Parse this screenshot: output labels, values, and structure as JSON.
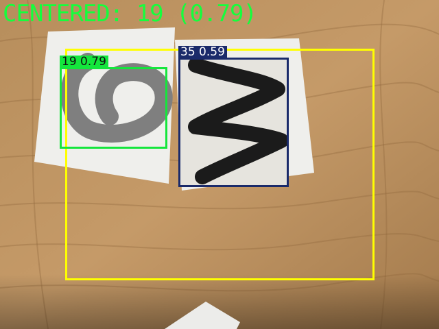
{
  "overlay": {
    "title": "CENTERED: 19 (0.79)"
  },
  "detections": [
    {
      "class_id": "19",
      "score": "0.79",
      "label": "19 0.79",
      "color": "#14e63c",
      "label_text_color": "#101010"
    },
    {
      "class_id": "35",
      "score": "0.59",
      "label": "35 0.59",
      "color": "#1a2a6a",
      "label_text_color": "#ffffff"
    }
  ],
  "center_region": {
    "color": "#ffff00"
  },
  "scene": {
    "background": "wooden-table",
    "cards": [
      {
        "glyph": "6",
        "ink_color": "#7a7a7a"
      },
      {
        "glyph": "W",
        "ink_color": "#1b1b1b"
      }
    ]
  }
}
